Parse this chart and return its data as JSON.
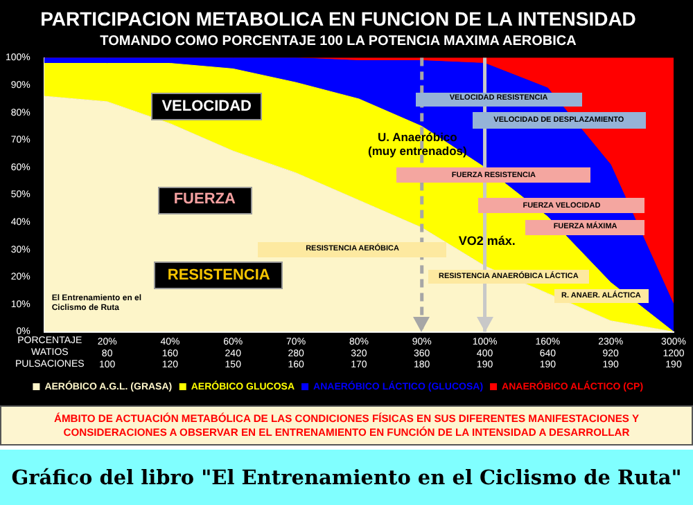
{
  "chart_data": {
    "type": "area",
    "stacked": true,
    "title": "PARTICIPACION METABOLICA EN FUNCION DE LA INTENSIDAD",
    "subtitle": "TOMANDO COMO PORCENTAJE 100 LA POTENCIA MAXIMA AEROBICA",
    "xlabel": "PORCENTAJE\nWATIOS\nPULSACIONES",
    "categories": [
      null,
      "20%\n80\n100",
      "40%\n160\n120",
      "60%\n240\n150",
      "70%\n280\n160",
      "80%\n320\n170",
      "90%\n360\n180",
      "100%\n400\n190",
      "160%\n640\n190",
      "230%\n920\n190",
      "300%\n1200\n190"
    ],
    "series": [
      {
        "name": "AERÓBICO A.G.L. (GRASA)",
        "color": "#fdf5c9",
        "values": [
          86,
          84,
          76,
          66,
          58,
          48,
          38,
          24,
          14,
          4,
          0
        ]
      },
      {
        "name": "AERÓBICO GLUCOSA",
        "color": "#ffff00",
        "values": [
          12,
          14,
          22,
          30,
          33,
          37,
          37,
          36,
          28,
          14,
          0
        ]
      },
      {
        "name": "ANAERÓBICO LÁCTICO (GLUCOSA)",
        "color": "#0000ff",
        "values": [
          2,
          2,
          2,
          4,
          9,
          14,
          24,
          38,
          47,
          43,
          10
        ]
      },
      {
        "name": "ANAERÓBICO ALÁCTICO (CP)",
        "color": "#ff0000",
        "values": [
          0,
          0,
          0,
          0,
          0,
          1,
          1,
          2,
          11,
          39,
          90
        ]
      }
    ],
    "ylim": [
      0,
      100
    ],
    "yticks": [
      {
        "value": 0,
        "label": "0%"
      },
      {
        "value": 10,
        "label": "10%"
      },
      {
        "value": 20,
        "label": "20%"
      },
      {
        "value": 30,
        "label": "30%"
      },
      {
        "value": 40,
        "label": "40%"
      },
      {
        "value": 50,
        "label": "50%"
      },
      {
        "value": 60,
        "label": "60%"
      },
      {
        "value": 70,
        "label": "70%"
      },
      {
        "value": 80,
        "label": "80%"
      },
      {
        "value": 90,
        "label": "90%"
      },
      {
        "value": 100,
        "label": "100%"
      }
    ],
    "grid": false,
    "legend": "bottom",
    "ref_lines": [
      {
        "axis": "x",
        "value": "90%\n360\n180",
        "line_style": "dashed",
        "color": "#a6a6a6"
      },
      {
        "axis": "x",
        "value": "100%\n400\n190",
        "line_style": "solid",
        "color": "#c8c8c8"
      }
    ],
    "annotations": [
      "VELOCIDAD",
      "FUERZA",
      "RESISTENCIA",
      "VELOCIDAD RESISTENCIA",
      "VELOCIDAD DE  DESPLAZAMIENTO",
      "U. Anaeróbico\n(muy entrenados)",
      "FUERZA RESISTENCIA",
      "FUERZA  VELOCIDAD",
      "FUERZA MÁXIMA",
      "RESISTENCIA AERÓBICA",
      "VO2 máx.",
      "RESISTENCIA ANAERÓBICA LÁCTICA",
      "R. ANAER.  ALÁCTICA",
      "El Entrenamiento en el\nCiclismo de Ruta",
      "ÁMBITO DE ACTUACIÓN METABÓLICA DE LAS CONDICIONES FÍSICAS EN SUS DIFERENTES MANIFESTACIONES Y CONSIDERACIONES A OBSERVAR EN EL ENTRENAMIENTO EN FUNCIÓN DE LA INTENSIDAD A DESARROLLAR",
      "Gráfico del libro \"El Entrenamiento en el Ciclismo de Ruta\""
    ]
  }
}
